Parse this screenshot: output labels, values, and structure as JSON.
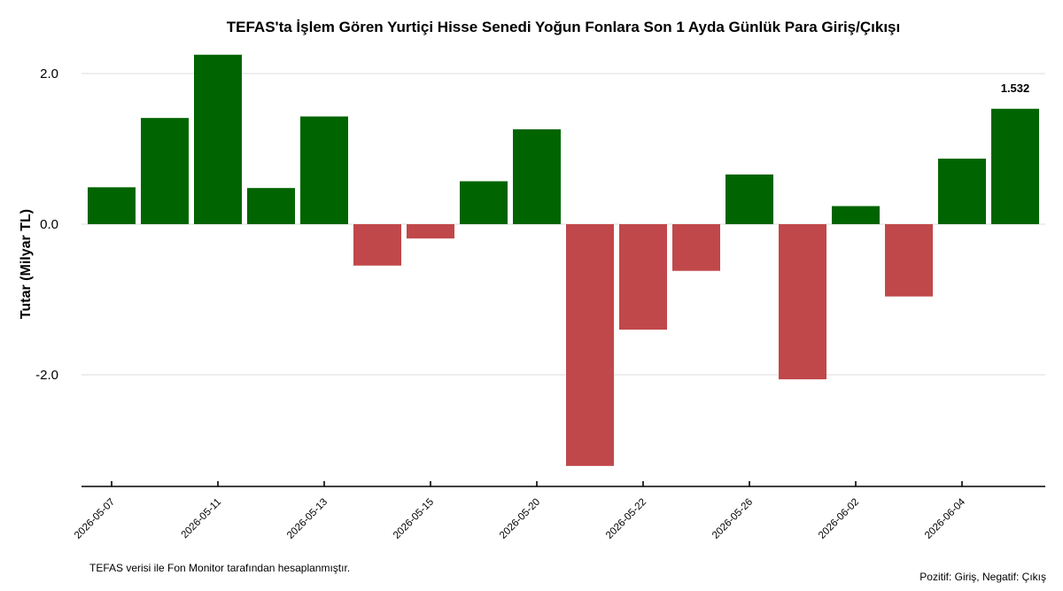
{
  "chart_data": {
    "type": "bar",
    "title": "TEFAS'ta İşlem Gören Yurtiçi Hisse Senedi Yoğun Fonlara Son 1 Ayda Günlük Para Giriş/Çıkışı",
    "ylabel": "Tutar (Milyar TL)",
    "xlabel": "",
    "ylim": [
      -3.5,
      2.0
    ],
    "yticks": [
      2.0,
      0.0,
      -2.0
    ],
    "ytick_labels": [
      "2.0",
      "0.0",
      "-2.0"
    ],
    "grid": true,
    "positive_color": "#006400",
    "negative_color": "#c0484a",
    "values": [
      0.49,
      1.41,
      2.25,
      0.48,
      1.43,
      -0.55,
      -0.19,
      0.57,
      1.26,
      -3.21,
      -1.4,
      -0.62,
      0.66,
      -2.06,
      0.24,
      -0.96,
      0.87,
      1.532
    ],
    "xtick_labels": [
      {
        "index": 0,
        "label": "2026-05-07"
      },
      {
        "index": 2,
        "label": "2026-05-11"
      },
      {
        "index": 4,
        "label": "2026-05-13"
      },
      {
        "index": 6,
        "label": "2026-05-15"
      },
      {
        "index": 8,
        "label": "2026-05-20"
      },
      {
        "index": 10,
        "label": "2026-05-22"
      },
      {
        "index": 12,
        "label": "2026-05-26"
      },
      {
        "index": 14,
        "label": "2026-06-02"
      },
      {
        "index": 16,
        "label": "2026-06-04"
      }
    ],
    "data_labels": [
      {
        "index": 17,
        "label": "1.532"
      }
    ]
  },
  "footer": {
    "source_note": "TEFAS verisi ile Fon Monitor tarafından hesaplanmıştır.",
    "legend_note": "Pozitif: Giriş, Negatif: Çıkış"
  }
}
